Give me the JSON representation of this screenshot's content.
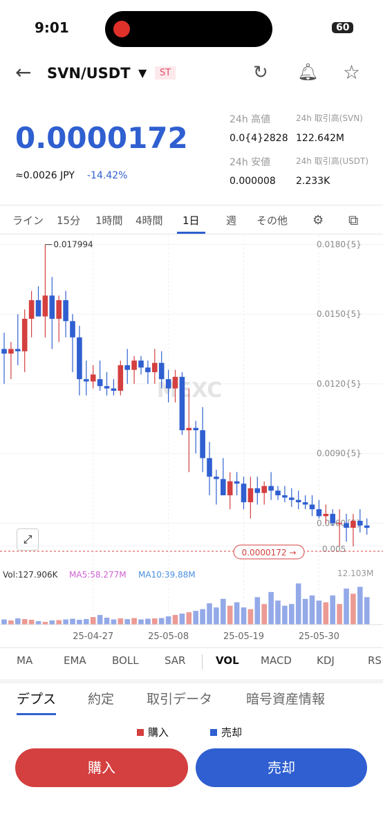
{
  "status_bar": {
    "time": "9:01",
    "battery": "60"
  },
  "header": {
    "pair": "SVN/USDT",
    "tag": "ST"
  },
  "ticker": {
    "price": "0.0000172",
    "approx": "≈0.0026 JPY",
    "change": "-14.42%",
    "stats": [
      [
        "24h 高値",
        "0.0{4}2828"
      ],
      [
        "24h 取引高(SVN)",
        "122.642M"
      ],
      [
        "24h 安値",
        "0.000008"
      ],
      [
        "24h 取引高(USDT)",
        "2.233K"
      ]
    ]
  },
  "intervals": [
    "ライン",
    "15分",
    "1時間",
    "4時間",
    "1日",
    "週",
    "その他"
  ],
  "chart_data": {
    "type": "candlestick",
    "watermark": "MEXC",
    "categories": [
      null,
      null,
      null,
      null,
      null,
      null,
      null,
      null,
      null,
      null,
      null,
      null,
      null,
      "25-04-27",
      null,
      null,
      null,
      null,
      null,
      null,
      null,
      null,
      null,
      null,
      "25-05-08",
      null,
      null,
      null,
      null,
      null,
      null,
      null,
      null,
      null,
      null,
      "25-05-19",
      null,
      null,
      null,
      null,
      null,
      null,
      null,
      null,
      null,
      null,
      "25-05-30",
      null,
      null,
      null,
      null,
      null,
      null,
      null
    ],
    "candles": [
      [
        0.0135,
        0.0142,
        0.012,
        0.0133
      ],
      [
        0.0133,
        0.0138,
        0.0122,
        0.0135
      ],
      [
        0.0135,
        0.015,
        0.0128,
        0.0134
      ],
      [
        0.0134,
        0.0152,
        0.0125,
        0.0148
      ],
      [
        0.0148,
        0.016,
        0.014,
        0.0156
      ],
      [
        0.0156,
        0.0162,
        0.015,
        0.0149
      ],
      [
        0.0149,
        0.017994,
        0.014,
        0.0158
      ],
      [
        0.0158,
        0.0166,
        0.0135,
        0.0148
      ],
      [
        0.0148,
        0.0158,
        0.0138,
        0.0156
      ],
      [
        0.0156,
        0.016,
        0.014,
        0.0147
      ],
      [
        0.0147,
        0.015,
        0.0125,
        0.014
      ],
      [
        0.014,
        0.0145,
        0.0115,
        0.0122
      ],
      [
        0.0122,
        0.013,
        0.0115,
        0.0121
      ],
      [
        0.0121,
        0.0128,
        0.0118,
        0.0124
      ],
      [
        0.0122,
        0.013,
        0.0117,
        0.0119
      ],
      [
        0.0119,
        0.0125,
        0.0115,
        0.0118
      ],
      [
        0.0118,
        0.0122,
        0.0115,
        0.0117
      ],
      [
        0.0117,
        0.013,
        0.0115,
        0.0128
      ],
      [
        0.0128,
        0.0135,
        0.012,
        0.0126
      ],
      [
        0.0126,
        0.0132,
        0.012,
        0.013
      ],
      [
        0.013,
        0.0132,
        0.0124,
        0.0127
      ],
      [
        0.0127,
        0.013,
        0.012,
        0.0125
      ],
      [
        0.0125,
        0.0135,
        0.012,
        0.0129
      ],
      [
        0.0129,
        0.0134,
        0.0118,
        0.0122
      ],
      [
        0.0122,
        0.0126,
        0.0112,
        0.0118
      ],
      [
        0.0118,
        0.0126,
        0.0112,
        0.0123
      ],
      [
        0.0123,
        0.0125,
        0.0098,
        0.01
      ],
      [
        0.01,
        0.0118,
        0.0082,
        0.0101
      ],
      [
        0.0101,
        0.0104,
        0.009,
        0.01
      ],
      [
        0.01,
        0.011,
        0.0082,
        0.0088
      ],
      [
        0.0088,
        0.0095,
        0.0072,
        0.008
      ],
      [
        0.008,
        0.0083,
        0.0068,
        0.0079
      ],
      [
        0.0079,
        0.0088,
        0.0072,
        0.0072
      ],
      [
        0.0072,
        0.0082,
        0.0066,
        0.0078
      ],
      [
        0.0078,
        0.0082,
        0.0072,
        0.0077
      ],
      [
        0.0077,
        0.008,
        0.0066,
        0.0069
      ],
      [
        0.0069,
        0.008,
        0.0062,
        0.0075
      ],
      [
        0.0075,
        0.008,
        0.0068,
        0.0073
      ],
      [
        0.0073,
        0.0078,
        0.0068,
        0.0076
      ],
      [
        0.0076,
        0.0082,
        0.007,
        0.0074
      ],
      [
        0.0074,
        0.0076,
        0.007,
        0.0072
      ],
      [
        0.0072,
        0.0076,
        0.0069,
        0.0071
      ],
      [
        0.0071,
        0.0075,
        0.0067,
        0.007
      ],
      [
        0.007,
        0.0074,
        0.0066,
        0.0069
      ],
      [
        0.0069,
        0.0072,
        0.0066,
        0.0068
      ],
      [
        0.0068,
        0.0072,
        0.0063,
        0.0066
      ],
      [
        0.0066,
        0.007,
        0.0062,
        0.0063
      ],
      [
        0.0063,
        0.0068,
        0.006,
        0.0064
      ],
      [
        0.0064,
        0.0066,
        0.0059,
        0.006
      ],
      [
        0.006,
        0.0066,
        0.005,
        0.006
      ],
      [
        0.006,
        0.0064,
        0.0052,
        0.0058
      ],
      [
        0.0058,
        0.0064,
        0.005,
        0.0061
      ],
      [
        0.0061,
        0.0066,
        0.0056,
        0.0059
      ],
      [
        0.0059,
        0.0062,
        0.0055,
        0.0058
      ]
    ],
    "high_label": "0.017994",
    "high_index": 6,
    "ylim": [
      0.0047,
      0.0184
    ],
    "yticks": [
      {
        "value": 0.018,
        "label": "0.0180{5}"
      },
      {
        "value": 0.015,
        "label": "0.0150{5}"
      },
      {
        "value": 0.012,
        "label": "0.0120{5}"
      },
      {
        "value": 0.009,
        "label": "0.0090{5}"
      },
      {
        "value": 0.006,
        "label": "0.0060{5}"
      },
      0.005
    ],
    "price_tag": "0.0000172 →",
    "up_color": "#d43f3f",
    "down_color": "#2f5fd0",
    "volume": [
      1.5,
      1.2,
      1.8,
      1.6,
      1.4,
      1.0,
      0.8,
      1.2,
      1.3,
      1.5,
      1.7,
      1.4,
      1.6,
      2.2,
      2.8,
      2.0,
      1.5,
      1.8,
      1.6,
      1.9,
      1.5,
      1.7,
      1.8,
      1.9,
      2.4,
      2.8,
      3.2,
      3.6,
      4.0,
      4.5,
      6.2,
      5.0,
      7.5,
      5.5,
      6.5,
      5.0,
      4.5,
      8.0,
      6.0,
      9.5,
      7.0,
      5.5,
      6.0,
      12.0,
      7.5,
      8.5,
      7.0,
      6.5,
      8.5,
      6.0,
      10.5,
      9.0,
      11.0,
      8.0
    ],
    "vlim": [
      0,
      12.103
    ],
    "vol_max_label": "12.103M",
    "vol_info": [
      "Vol:127.906K",
      "MA5:58.277M",
      "MA10:39.88M"
    ]
  },
  "indicators": [
    "MA",
    "EMA",
    "BOLL",
    "SAR",
    "VOL",
    "MACD",
    "KDJ",
    "RS"
  ],
  "detail_tabs": [
    "デプス",
    "約定",
    "取引データ",
    "暗号資産情報"
  ],
  "depth_legend": [
    "購入",
    "売却"
  ],
  "buttons": {
    "buy": "購入",
    "sell": "売却"
  }
}
